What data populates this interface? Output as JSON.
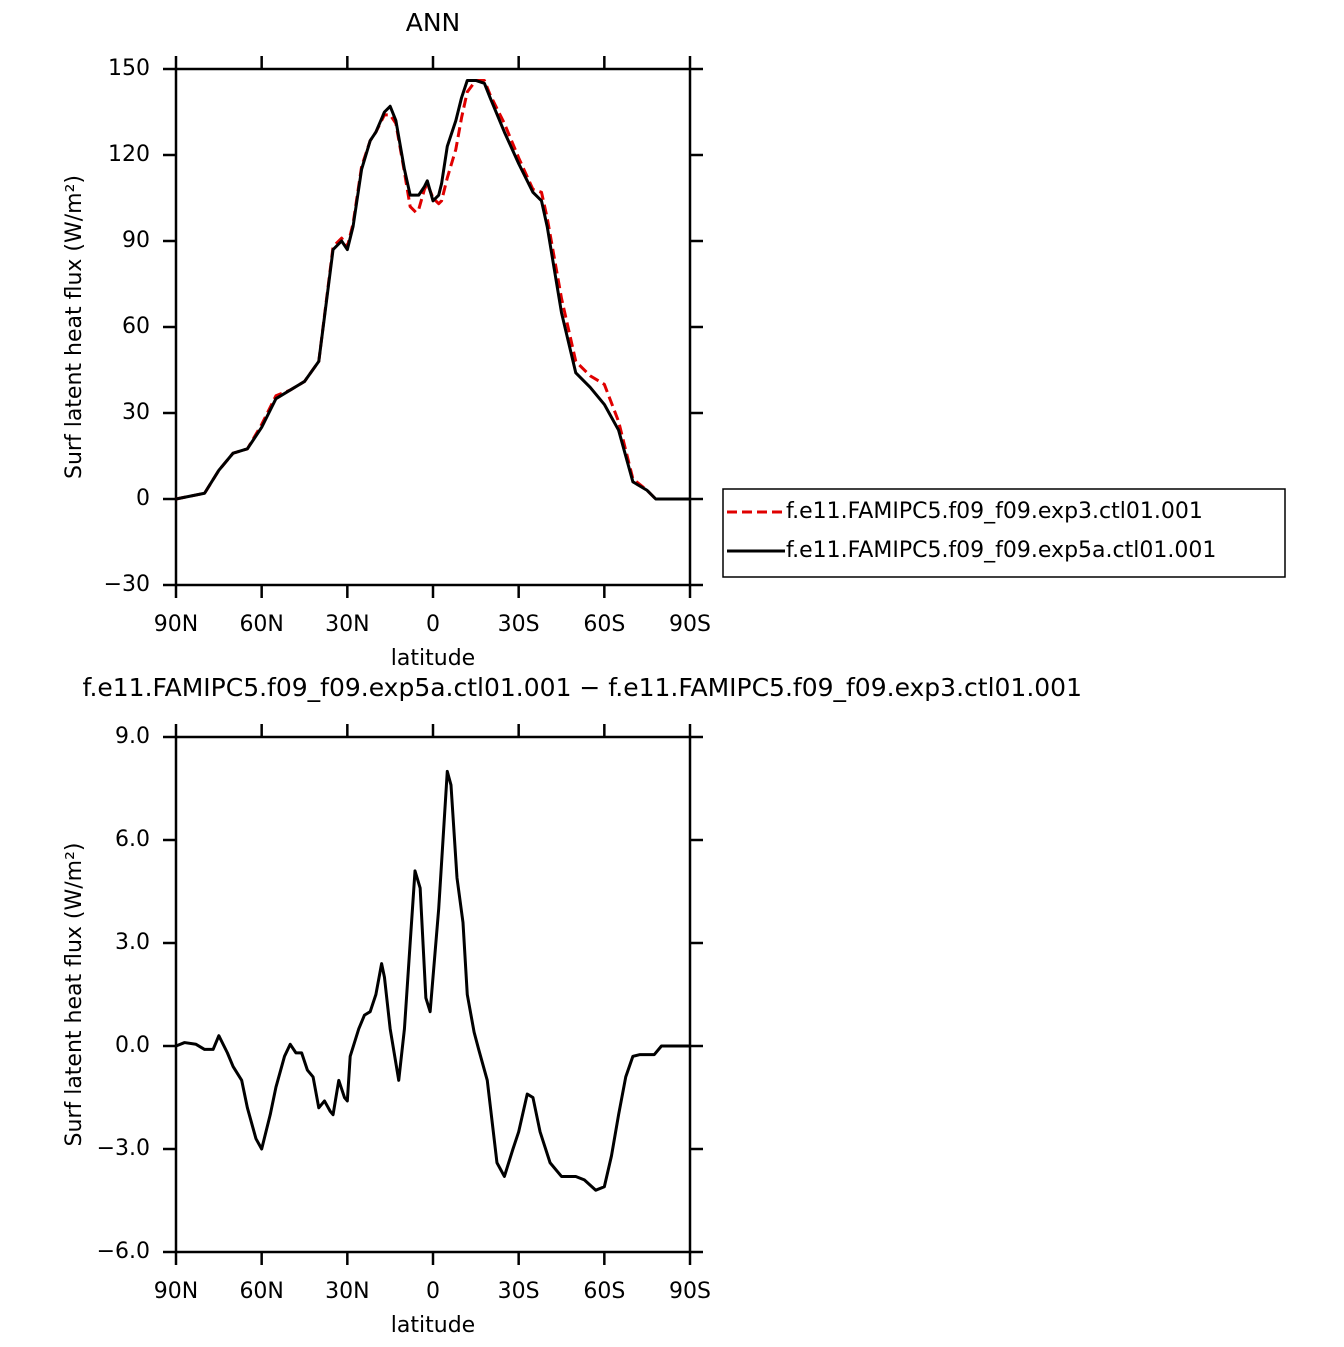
{
  "chart_data": [
    {
      "type": "line",
      "title": "ANN",
      "xlabel": "latitude",
      "ylabel": "Surf latent heat flux (W/m²)",
      "x": [
        90,
        85,
        80,
        75,
        70,
        65,
        60,
        55,
        50,
        45,
        40,
        35,
        32,
        30,
        28,
        25,
        22,
        20,
        17,
        15,
        13,
        10,
        8,
        6,
        5,
        3,
        2,
        0,
        -2,
        -3,
        -5,
        -8,
        -10,
        -12,
        -15,
        -18,
        -20,
        -25,
        -30,
        -35,
        -38,
        -40,
        -45,
        -50,
        -55,
        -60,
        -65,
        -70,
        -75,
        -78,
        -80,
        -85,
        -90
      ],
      "xlim": [
        90,
        -90
      ],
      "xticks": [
        {
          "value": 90,
          "label": "90N"
        },
        {
          "value": 60,
          "label": "60N"
        },
        {
          "value": 30,
          "label": "30N"
        },
        0,
        {
          "value": -30,
          "label": "30S"
        },
        {
          "value": -60,
          "label": "60S"
        },
        {
          "value": -90,
          "label": "90S"
        }
      ],
      "ylim": [
        -30,
        150
      ],
      "yticks": [
        {
          "value": -30,
          "label": "−30"
        },
        0,
        30,
        60,
        90,
        120,
        150
      ],
      "legend": "right",
      "series": [
        {
          "name": "f.e11.FAMIPC5.f09_f09.exp3.ctl01.001",
          "color": "#e00000",
          "dash": true,
          "values": [
            0,
            1,
            2,
            10,
            16,
            17.5,
            26,
            36,
            38,
            41,
            48,
            88,
            91,
            88,
            96,
            116,
            125,
            128,
            134,
            134,
            131,
            114,
            102,
            100,
            101,
            108,
            110,
            105,
            103,
            104,
            112,
            122,
            133,
            142,
            146,
            146,
            141,
            131,
            119,
            108,
            107,
            98,
            70,
            48,
            43,
            40,
            27,
            7,
            3,
            0,
            0,
            0,
            0
          ]
        },
        {
          "name": "f.e11.FAMIPC5.f09_f09.exp5a.ctl01.001",
          "color": "#000000",
          "dash": false,
          "values": [
            0,
            1,
            2,
            10,
            16,
            17.5,
            25,
            35,
            38,
            41,
            48,
            87,
            90,
            87,
            95,
            115,
            125,
            128,
            135,
            137,
            132,
            115,
            106,
            106,
            106,
            109,
            111,
            104,
            106,
            110,
            123,
            132,
            140,
            146,
            146,
            145,
            140,
            128,
            117,
            107,
            104,
            95,
            65,
            44,
            39,
            33,
            24,
            6,
            3,
            0,
            0,
            0,
            0
          ]
        }
      ]
    },
    {
      "type": "line",
      "title": "f.e11.FAMIPC5.f09_f09.exp5a.ctl01.001  −  f.e11.FAMIPC5.f09_f09.exp3.ctl01.001",
      "xlabel": "latitude",
      "ylabel": "Surf latent heat flux (W/m²)",
      "x": [
        90,
        87,
        83,
        80,
        77,
        75,
        72,
        70,
        67,
        65,
        62,
        60,
        57,
        55,
        52,
        50,
        48,
        46,
        44,
        42,
        40,
        38,
        36,
        35,
        33,
        31,
        30,
        29,
        26,
        24,
        22,
        20,
        18,
        17,
        15,
        13,
        12,
        10,
        8,
        6.3,
        4.5,
        2.5,
        1,
        -2,
        -5,
        -6.3,
        -8.4,
        -10.5,
        -12,
        -14.4,
        -16,
        -19,
        -22.4,
        -25,
        -28,
        -30,
        -33,
        -35,
        -37.5,
        -41,
        -45,
        -50,
        -53,
        -57,
        -60,
        -62.5,
        -65,
        -67.5,
        -70,
        -72.5,
        -77.5,
        -80,
        -85,
        -90
      ],
      "xlim": [
        90,
        -90
      ],
      "xticks": [
        {
          "value": 90,
          "label": "90N"
        },
        {
          "value": 60,
          "label": "60N"
        },
        {
          "value": 30,
          "label": "30N"
        },
        0,
        {
          "value": -30,
          "label": "30S"
        },
        {
          "value": -60,
          "label": "60S"
        },
        {
          "value": -90,
          "label": "90S"
        }
      ],
      "ylim": [
        -6,
        9
      ],
      "yticks": [
        {
          "value": -6,
          "label": "−6.0"
        },
        {
          "value": -3,
          "label": "−3.0"
        },
        {
          "value": 0,
          "label": "0.0"
        },
        {
          "value": 3,
          "label": "3.0"
        },
        {
          "value": 6,
          "label": "6.0"
        },
        {
          "value": 9,
          "label": "9.0"
        }
      ],
      "series": [
        {
          "color": "#000000",
          "dash": false,
          "values": [
            0,
            0.1,
            0.05,
            -0.1,
            -0.1,
            0.3,
            -0.2,
            -0.6,
            -1.0,
            -1.8,
            -2.7,
            -3.0,
            -2.0,
            -1.2,
            -0.3,
            0.05,
            -0.2,
            -0.2,
            -0.7,
            -0.9,
            -1.8,
            -1.6,
            -1.9,
            -2.0,
            -1.0,
            -1.5,
            -1.6,
            -0.3,
            0.5,
            0.9,
            1.0,
            1.5,
            2.4,
            2.0,
            0.5,
            -0.5,
            -1.0,
            0.5,
            3.0,
            5.1,
            4.6,
            1.4,
            1.0,
            4.0,
            8.0,
            7.6,
            4.9,
            3.6,
            1.5,
            0.4,
            -0.1,
            -1.0,
            -3.4,
            -3.8,
            -3.0,
            -2.5,
            -1.4,
            -1.5,
            -2.5,
            -3.4,
            -3.8,
            -3.8,
            -3.9,
            -4.2,
            -4.1,
            -3.2,
            -2.0,
            -0.9,
            -0.3,
            -0.25,
            -0.25,
            0,
            0,
            0
          ]
        }
      ]
    }
  ]
}
